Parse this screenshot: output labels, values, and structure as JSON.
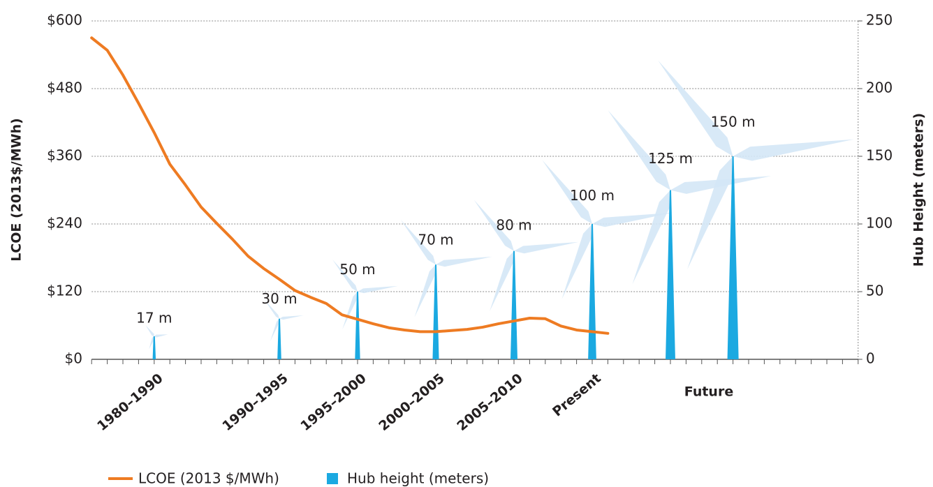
{
  "chart_data": {
    "type": "combo",
    "y_label": "LCOE (2013$/MWh)",
    "y2_label": "Hub Height (meters)",
    "categories": [
      null,
      null,
      null,
      null,
      "1980–1990",
      null,
      null,
      null,
      null,
      null,
      null,
      null,
      "1990–1995",
      null,
      null,
      null,
      null,
      "1995–2000",
      null,
      null,
      null,
      null,
      "2000–2005",
      null,
      null,
      null,
      null,
      "2005–2010",
      null,
      null,
      null,
      null,
      "Present",
      null,
      null,
      null,
      null,
      null,
      null,
      null,
      null,
      null,
      null,
      null,
      null,
      null,
      null,
      null,
      null,
      null
    ],
    "x_group_label": "Future",
    "series": [
      {
        "name": "LCOE (2013 $/MWh)",
        "type": "line",
        "color": "#ee7b22",
        "values": [
          570,
          548,
          504,
          454,
          402,
          346,
          309,
          270,
          241,
          213,
          183,
          161,
          142,
          122,
          110,
          99,
          79,
          71,
          63,
          56,
          52,
          49,
          49,
          51,
          53,
          57,
          63,
          68,
          73,
          72,
          59,
          52,
          49,
          46,
          null,
          null,
          null,
          null,
          null,
          null,
          null,
          null,
          null,
          null,
          null,
          null,
          null,
          null,
          null,
          null
        ]
      },
      {
        "name": "Hub height (meters)",
        "type": "turbine",
        "axis": "y2",
        "color": "#1ba9e1",
        "values": [
          null,
          null,
          null,
          null,
          17,
          null,
          null,
          null,
          null,
          null,
          null,
          null,
          30,
          null,
          null,
          null,
          null,
          50,
          null,
          null,
          null,
          null,
          70,
          null,
          null,
          null,
          null,
          80,
          null,
          null,
          null,
          null,
          100,
          null,
          null,
          null,
          null,
          125,
          null,
          null,
          null,
          150,
          null,
          null,
          null,
          null,
          null,
          null,
          null,
          null
        ],
        "value_labels": [
          null,
          null,
          null,
          null,
          "17 m",
          null,
          null,
          null,
          null,
          null,
          null,
          null,
          "30 m",
          null,
          null,
          null,
          null,
          "50 m",
          null,
          null,
          null,
          null,
          "70 m",
          null,
          null,
          null,
          null,
          "80 m",
          null,
          null,
          null,
          null,
          "100 m",
          null,
          null,
          null,
          null,
          "125 m",
          null,
          null,
          null,
          "150 m",
          null,
          null,
          null,
          null,
          null,
          null,
          null,
          null
        ]
      }
    ],
    "ylim": [
      0,
      600
    ],
    "yticks": [
      {
        "value": 0,
        "label": "$0"
      },
      {
        "value": 120,
        "label": "$120"
      },
      {
        "value": 240,
        "label": "$240"
      },
      {
        "value": 360,
        "label": "$360"
      },
      {
        "value": 480,
        "label": "$480"
      },
      {
        "value": 600,
        "label": "$600"
      }
    ],
    "y2lim": [
      0,
      250
    ],
    "y2ticks": [
      0,
      50,
      100,
      150,
      200,
      250
    ],
    "grid": true
  }
}
